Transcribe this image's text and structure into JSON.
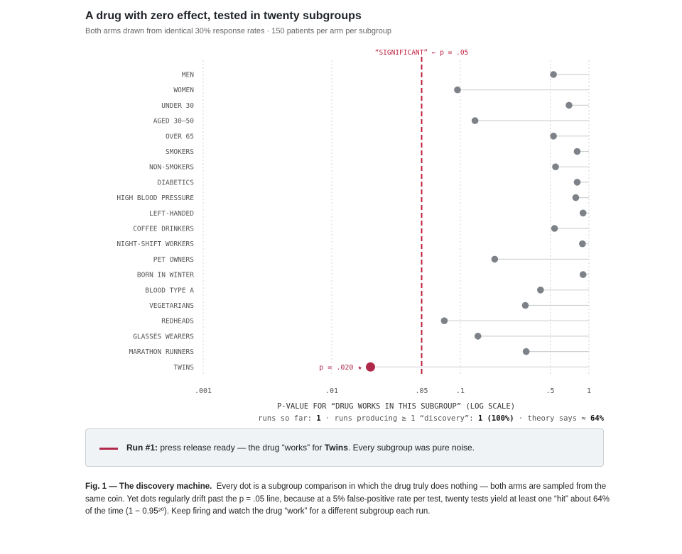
{
  "header": {
    "title": "A drug with zero effect, tested in twenty subgroups",
    "subtitle": "Both arms drawn from identical 30% response rates · 150 patients per arm per subgroup"
  },
  "chart_data": {
    "type": "scatter",
    "scale": "log",
    "xlabel": "P-VALUE FOR “DRUG WORKS IN THIS SUBGROUP” (LOG SCALE)",
    "xlim": [
      0.001,
      1
    ],
    "xticks": [
      {
        "value": 0.001,
        "label": ".001"
      },
      {
        "value": 0.01,
        "label": ".01"
      },
      {
        "value": 0.05,
        "label": ".05"
      },
      {
        "value": 0.1,
        "label": ".1"
      },
      {
        "value": 0.5,
        "label": ".5"
      },
      {
        "value": 1,
        "label": "1"
      }
    ],
    "threshold": {
      "value": 0.05,
      "label": "“SIGNIFICANT” ← p = .05",
      "color": "#c0203f"
    },
    "significant_color": "#b0294a",
    "point_color": "#7d8288",
    "subgroups": [
      {
        "name": "MEN",
        "p": 0.53
      },
      {
        "name": "WOMEN",
        "p": 0.095
      },
      {
        "name": "UNDER 30",
        "p": 0.7
      },
      {
        "name": "AGED 30–50",
        "p": 0.13
      },
      {
        "name": "OVER 65",
        "p": 0.53
      },
      {
        "name": "SMOKERS",
        "p": 0.81
      },
      {
        "name": "NON-SMOKERS",
        "p": 0.55
      },
      {
        "name": "DIABETICS",
        "p": 0.81
      },
      {
        "name": "HIGH BLOOD PRESSURE",
        "p": 0.79
      },
      {
        "name": "LEFT-HANDED",
        "p": 0.9
      },
      {
        "name": "COFFEE DRINKERS",
        "p": 0.54
      },
      {
        "name": "NIGHT-SHIFT WORKERS",
        "p": 0.89
      },
      {
        "name": "PET OWNERS",
        "p": 0.185
      },
      {
        "name": "BORN IN WINTER",
        "p": 0.9
      },
      {
        "name": "BLOOD TYPE A",
        "p": 0.42
      },
      {
        "name": "VEGETARIANS",
        "p": 0.32
      },
      {
        "name": "REDHEADS",
        "p": 0.075
      },
      {
        "name": "GLASSES WEARERS",
        "p": 0.137
      },
      {
        "name": "MARATHON RUNNERS",
        "p": 0.325
      },
      {
        "name": "TWINS",
        "p": 0.02,
        "significant": true,
        "label": "p = .020  ★"
      }
    ]
  },
  "stats": {
    "runs_label": "runs so far:",
    "runs_value": "1",
    "discovery_label": "· runs producing ≥ 1 “discovery”:",
    "discovery_value": "1 (100%)",
    "theory_label": "· theory says ≈",
    "theory_value": "64%"
  },
  "callout": {
    "run_label": "Run #1:",
    "message_pre": "press release ready — the drug “works” for",
    "subgroup": "Twins",
    "message_post": ". Every subgroup was pure noise."
  },
  "caption": {
    "label": "Fig. 1 — The discovery machine.",
    "text": "Every dot is a subgroup comparison in which the drug truly does nothing — both arms are sampled from the same coin. Yet dots regularly drift past the p = .05 line, because at a 5% false-positive rate per test, twenty tests yield at least one “hit” about 64% of the time (1 − 0.95²⁰). Keep firing and watch the drug “work” for a different subgroup each run."
  }
}
